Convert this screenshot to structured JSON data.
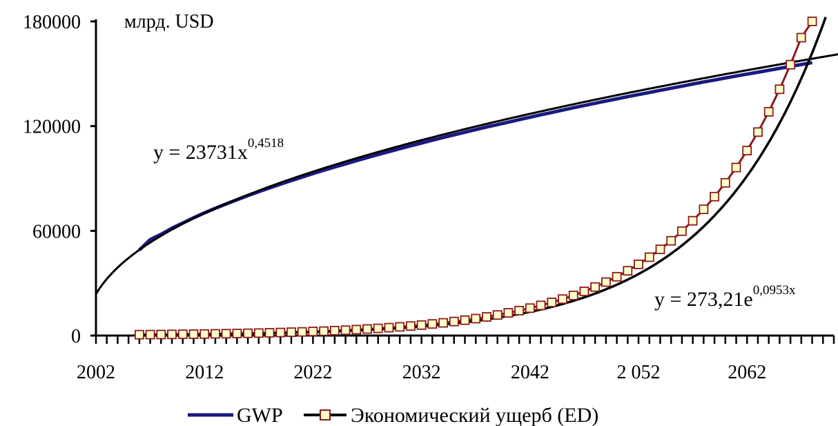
{
  "chart_data": {
    "type": "line",
    "unit_label": "млрд. USD",
    "ylim": [
      0,
      180000
    ],
    "y_ticks": [
      0,
      60000,
      120000,
      180000
    ],
    "y_tick_labels": [
      "0",
      "60000",
      "120000",
      "180000"
    ],
    "xlim": [
      2002,
      2070
    ],
    "x_tick_values": [
      2002,
      2012,
      2022,
      2032,
      2042,
      2052,
      2062
    ],
    "x_tick_labels": [
      "2002",
      "2012",
      "2022",
      "2032",
      "2042",
      "2 052",
      "2062"
    ],
    "x": [
      2006,
      2007,
      2008,
      2009,
      2010,
      2011,
      2012,
      2013,
      2014,
      2015,
      2016,
      2017,
      2018,
      2019,
      2020,
      2021,
      2022,
      2023,
      2024,
      2025,
      2026,
      2027,
      2028,
      2029,
      2030,
      2031,
      2032,
      2033,
      2034,
      2035,
      2036,
      2037,
      2038,
      2039,
      2040,
      2041,
      2042,
      2043,
      2044,
      2045,
      2046,
      2047,
      2048,
      2049,
      2050,
      2051,
      2052,
      2053,
      2054,
      2055,
      2056,
      2057,
      2058,
      2059,
      2060,
      2061,
      2062,
      2063,
      2064,
      2065,
      2066,
      2067,
      2068
    ],
    "series": [
      {
        "name": "GWP",
        "color": "#1a1a80",
        "values": [
          49000,
          55000,
          58000,
          61500,
          64500,
          67500,
          70300,
          72900,
          75400,
          77800,
          80200,
          82400,
          84600,
          86700,
          88800,
          90800,
          92800,
          94700,
          96600,
          98400,
          100200,
          102000,
          103700,
          105400,
          107100,
          108700,
          110300,
          111900,
          113500,
          115000,
          116500,
          118000,
          119500,
          120900,
          122300,
          123700,
          125100,
          126500,
          127800,
          129200,
          130500,
          131800,
          133100,
          134400,
          135600,
          136900,
          138100,
          139300,
          140500,
          141700,
          142900,
          144100,
          145300,
          146400,
          147600,
          148700,
          149800,
          150900,
          152000,
          153100,
          154200,
          155300,
          156400
        ]
      },
      {
        "name": "Экономический ущерб (ED)",
        "color": "#8b1a1a",
        "marker_fill": "#ffffcc",
        "values": [
          500,
          550,
          610,
          670,
          740,
          810,
          890,
          980,
          1080,
          1190,
          1310,
          1440,
          1580,
          1740,
          1920,
          2110,
          2320,
          2550,
          2810,
          3090,
          3400,
          3740,
          4110,
          4520,
          4980,
          5470,
          6020,
          6630,
          7290,
          8020,
          8820,
          9700,
          10700,
          11800,
          13000,
          14300,
          15700,
          17300,
          19000,
          20900,
          23000,
          25300,
          27800,
          30600,
          33700,
          37100,
          40800,
          44900,
          49400,
          54300,
          59800,
          65800,
          72300,
          79600,
          87500,
          96300,
          106000,
          116600,
          128200,
          141100,
          155200,
          170700,
          180000
        ]
      }
    ],
    "trendlines": [
      {
        "type": "power",
        "coef": 23731,
        "exp": 0.4518,
        "x_from": 1,
        "x_to": 70,
        "equation_base": "y = 23731x",
        "equation_exp": "0,4518"
      },
      {
        "type": "exponential",
        "coef": 273.21,
        "rate": 0.0953,
        "x_from": 5,
        "x_to": 69,
        "equation_base": "y = 273,21e",
        "equation_exp": "0,0953x"
      }
    ],
    "legend": [
      "GWP",
      "Экономический ущерб (ED)"
    ],
    "legend_position": "bottom",
    "grid": false
  }
}
